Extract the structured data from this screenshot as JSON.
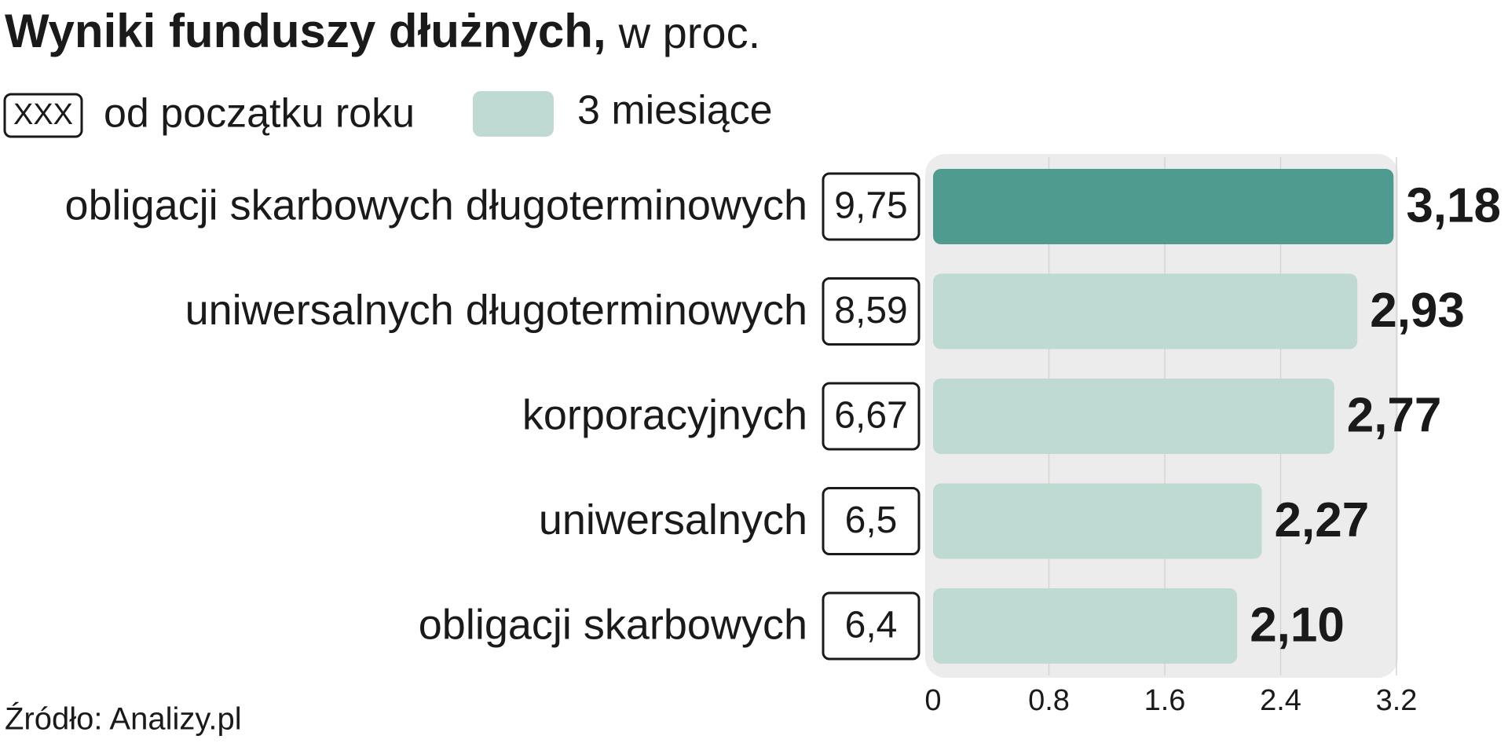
{
  "chart_data": {
    "type": "bar",
    "title": "Wyniki funduszy dłużnych,",
    "subtitle": "w proc.",
    "categories": [
      "obligacji skarbowych długoterminowych",
      "uniwersalnych długoterminowych",
      "korporacyjnych",
      "uniwersalnych",
      "obligacji skarbowych"
    ],
    "series": [
      {
        "name": "od początku roku",
        "legend_sample": "XXX",
        "values": [
          9.75,
          8.59,
          6.67,
          6.5,
          6.4
        ],
        "value_labels": [
          "9,75",
          "8,59",
          "6,67",
          "6,5",
          "6,4"
        ]
      },
      {
        "name": "3 miesiące",
        "color": "#bfd9d3",
        "colors": [
          "#509b8f",
          "#bfd9d3",
          "#bfd9d3",
          "#bfd9d3",
          "#bfd9d3"
        ],
        "values": [
          3.18,
          2.93,
          2.77,
          2.27,
          2.1
        ],
        "value_labels": [
          "3,18",
          "2,93",
          "2,77",
          "2,27",
          "2,10"
        ]
      }
    ],
    "xlim": [
      0,
      3.2
    ],
    "xticks": [
      0,
      0.8,
      1.6,
      2.4,
      3.2
    ],
    "grid": true,
    "source": "Źródło: Analizy.pl"
  }
}
